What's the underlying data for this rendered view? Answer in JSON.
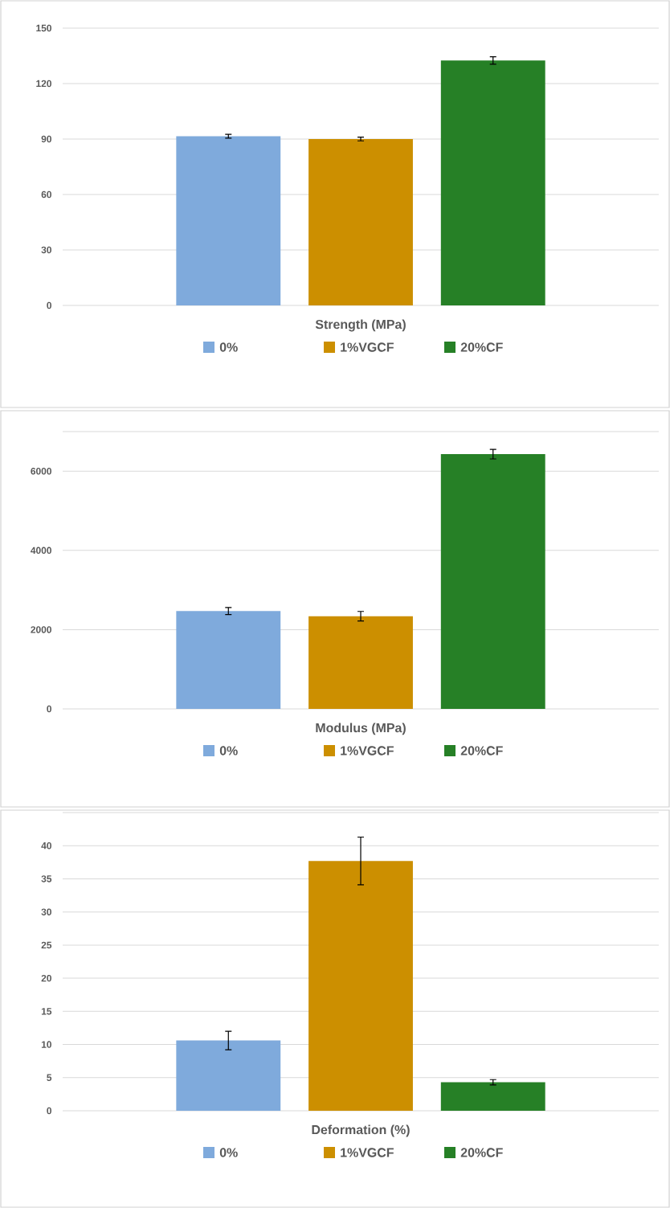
{
  "chart_data": [
    {
      "type": "bar",
      "categories": [
        "Strength (MPa)"
      ],
      "ylim": [
        0,
        150
      ],
      "yticks": [
        0,
        30,
        60,
        90,
        120,
        150
      ],
      "grid": "y",
      "legend": "bottom",
      "series": [
        {
          "name": "0%",
          "color": "#7faadc",
          "values": [
            91.5
          ],
          "errors": [
            1
          ]
        },
        {
          "name": "1%VGCF",
          "color": "#cc8f00",
          "values": [
            90
          ],
          "errors": [
            1
          ]
        },
        {
          "name": "20%CF",
          "color": "#268026",
          "values": [
            132.5
          ],
          "errors": [
            2
          ]
        }
      ]
    },
    {
      "type": "bar",
      "categories": [
        "Modulus (MPa)"
      ],
      "ylim": [
        0,
        7000
      ],
      "yticks": [
        0,
        2000,
        4000,
        6000,
        {
          "value": 7000,
          "label": null
        }
      ],
      "grid": "y",
      "legend": "bottom",
      "series": [
        {
          "name": "0%",
          "color": "#7faadc",
          "values": [
            2470
          ],
          "errors": [
            90
          ]
        },
        {
          "name": "1%VGCF",
          "color": "#cc8f00",
          "values": [
            2340
          ],
          "errors": [
            120
          ]
        },
        {
          "name": "20%CF",
          "color": "#268026",
          "values": [
            6430
          ],
          "errors": [
            120
          ]
        }
      ]
    },
    {
      "type": "bar",
      "categories": [
        "Deformation (%)"
      ],
      "ylim": [
        0,
        45
      ],
      "yticks": [
        0,
        5,
        10,
        15,
        20,
        25,
        30,
        35,
        40,
        {
          "value": 45,
          "label": null
        }
      ],
      "grid": "y",
      "legend": "bottom",
      "series": [
        {
          "name": "0%",
          "color": "#7faadc",
          "values": [
            10.6
          ],
          "errors": [
            1.4
          ]
        },
        {
          "name": "1%VGCF",
          "color": "#cc8f00",
          "values": [
            37.7
          ],
          "errors": [
            3.6
          ]
        },
        {
          "name": "20%CF",
          "color": "#268026",
          "values": [
            4.3
          ],
          "errors": [
            0.4
          ]
        }
      ]
    }
  ]
}
